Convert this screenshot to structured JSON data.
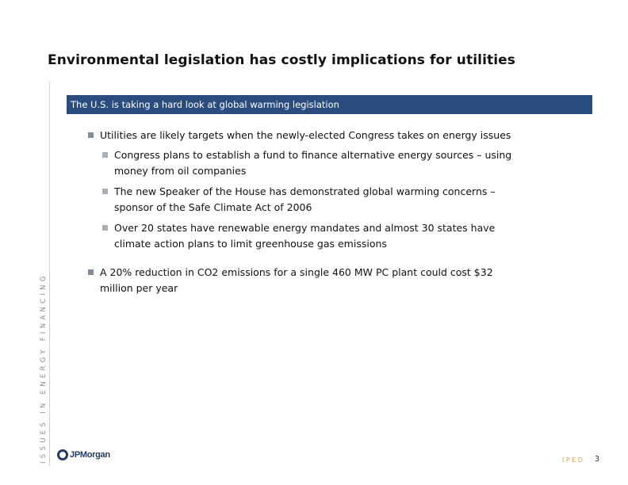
{
  "slide": {
    "title": "Environmental legislation has costly implications for utilities",
    "side_label": "ISSUES IN ENERGY FINANCING",
    "banner": "The U.S. is taking a hard look at global warming legislation",
    "bullets": [
      {
        "text": "Utilities are likely targets when the newly-elected Congress takes on energy issues",
        "sub": [
          {
            "line1": "Congress plans to establish a fund to finance alternative energy sources – using",
            "line2": "money from oil companies"
          },
          {
            "line1": "The new Speaker of the House has demonstrated global warming concerns –",
            "line2": "sponsor of  the Safe Climate Act of 2006"
          },
          {
            "line1": "Over 20 states have renewable energy mandates and almost 30 states have",
            "line2": "climate action plans to limit greenhouse gas emissions"
          }
        ]
      },
      {
        "line1": "A 20% reduction in CO2 emissions for a single 460 MW PC plant could cost $32",
        "line2": "million per year"
      }
    ],
    "logo_text": "JPMorgan",
    "footer_label": "IPED",
    "page_number": "3",
    "colors": {
      "banner": "#2b4c7e",
      "bullet": "#7f8c9b",
      "footer_label": "#d9a24a"
    }
  }
}
